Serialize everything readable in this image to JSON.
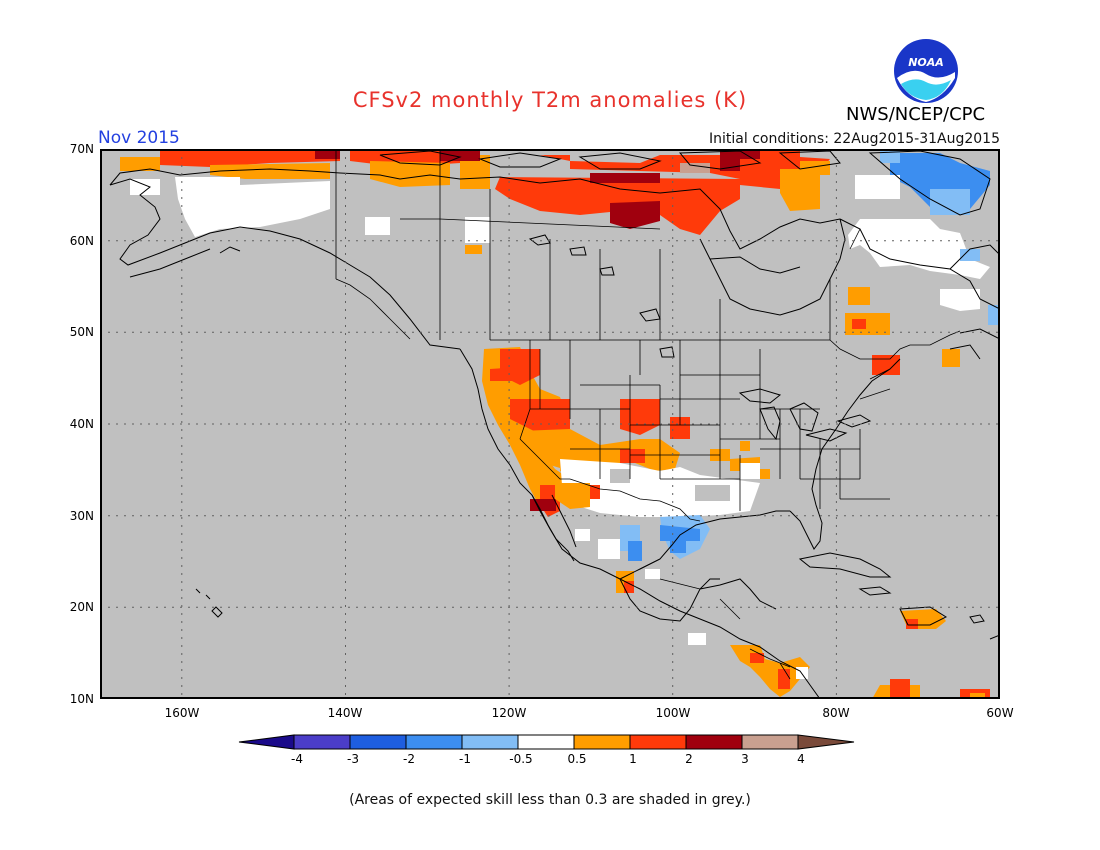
{
  "header": {
    "title": "CFSv2 monthly T2m anomalies (K)",
    "period": "Nov 2015",
    "initial_conditions": "Initial conditions: 22Aug2015-31Aug2015",
    "agency": "NWS/NCEP/CPC"
  },
  "map": {
    "extent": {
      "lon_min": -170,
      "lon_max": -60,
      "lat_min": 10,
      "lat_max": 70
    },
    "lat_ticks": [
      "70N",
      "60N",
      "50N",
      "40N",
      "30N",
      "20N",
      "10N"
    ],
    "lon_ticks": [
      "160W",
      "140W",
      "120W",
      "100W",
      "80W",
      "60W"
    ],
    "gridlines": "dotted",
    "no_skill_color": "#c0c0c0",
    "ocean_color": "#c0c0c0"
  },
  "legend": {
    "bins": [
      {
        "label": "<-4",
        "color": "#1a0a8a"
      },
      {
        "label": "-4 to -3",
        "color": "#4b3dc8"
      },
      {
        "label": "-3 to -2",
        "color": "#1e5ee0"
      },
      {
        "label": "-2 to -1",
        "color": "#3c8ef0"
      },
      {
        "label": "-1 to -0.5",
        "color": "#82bdf5"
      },
      {
        "label": "-0.5 to 0.5",
        "color": "#ffffff"
      },
      {
        "label": "0.5 to 1",
        "color": "#ff9d00"
      },
      {
        "label": "1 to 2",
        "color": "#ff3a0a"
      },
      {
        "label": "2 to 3",
        "color": "#a0000e"
      },
      {
        "label": "3 to 4",
        "color": "#c9a090"
      },
      {
        "label": ">4",
        "color": "#7a4a3a"
      }
    ],
    "tick_labels": [
      "-4",
      "-3",
      "-2",
      "-1",
      "-0.5",
      "0.5",
      "1",
      "2",
      "3",
      "4"
    ]
  },
  "footnote": "(Areas of expected skill less than 0.3 are shaded in grey.)",
  "anomaly_regions": [
    {
      "name": "northern-alaska-coast",
      "value": 1.5,
      "color": "#ff3a0a"
    },
    {
      "name": "alaska-interior",
      "value": 0.0,
      "color": "#ffffff"
    },
    {
      "name": "northwest-territories",
      "value": 1.5,
      "color": "#ff3a0a"
    },
    {
      "name": "nunavut-mainland",
      "value": 2.5,
      "color": "#a0000e"
    },
    {
      "name": "baffin-region",
      "value": -1.5,
      "color": "#3c8ef0"
    },
    {
      "name": "quebec-labrador",
      "value": 0.0,
      "color": "#ffffff"
    },
    {
      "name": "us-west-coast",
      "value": 1.5,
      "color": "#ff3a0a"
    },
    {
      "name": "us-southwest",
      "value": 0.7,
      "color": "#ff9d00"
    },
    {
      "name": "texas-gulf",
      "value": -0.7,
      "color": "#82bdf5"
    },
    {
      "name": "southern-plains",
      "value": 0.0,
      "color": "#ffffff"
    },
    {
      "name": "central-america",
      "value": 0.7,
      "color": "#ff9d00"
    },
    {
      "name": "caribbean",
      "value": 0.7,
      "color": "#ff9d00"
    }
  ]
}
